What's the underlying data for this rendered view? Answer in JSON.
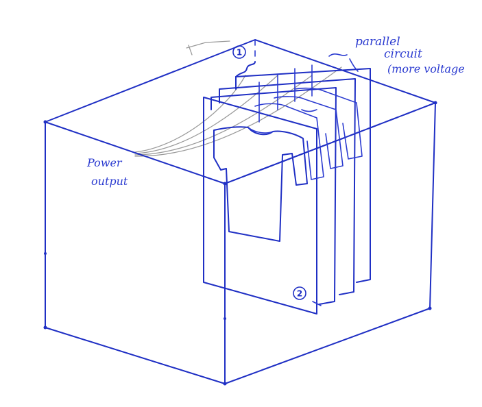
{
  "annotations": {
    "top_note_line1": "parallel",
    "top_note_line2": "circuit",
    "top_note_line3": "(more voltage",
    "left_note_line1": "Power",
    "left_note_line2": "output",
    "marker_1": "1",
    "marker_2": "2"
  },
  "colors": {
    "ink": "#1f2fc4",
    "pencil": "#9a9a9a",
    "paper": "#ffffff"
  }
}
